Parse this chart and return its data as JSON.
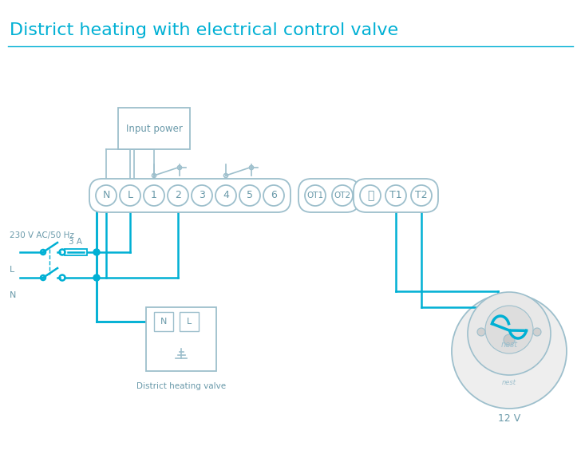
{
  "title": "District heating with electrical control valve",
  "title_color": "#00b0d4",
  "title_fontsize": 16,
  "wire_color": "#00b0d4",
  "box_color": "#9dbfcc",
  "text_color": "#6a9aaa",
  "bg_color": "#ffffff",
  "terminal_labels": [
    "N",
    "L",
    "1",
    "2",
    "3",
    "4",
    "5",
    "6"
  ],
  "ot_labels": [
    "OT1",
    "OT2"
  ],
  "t_labels": [
    "⏚",
    "T1",
    "T2"
  ],
  "label_12V": "12 V",
  "label_input_power": "Input power",
  "label_district_valve": "District heating valve",
  "label_fuse": "3 A",
  "label_230v": "230 V AC/50 Hz",
  "label_L": "L",
  "label_N": "N"
}
